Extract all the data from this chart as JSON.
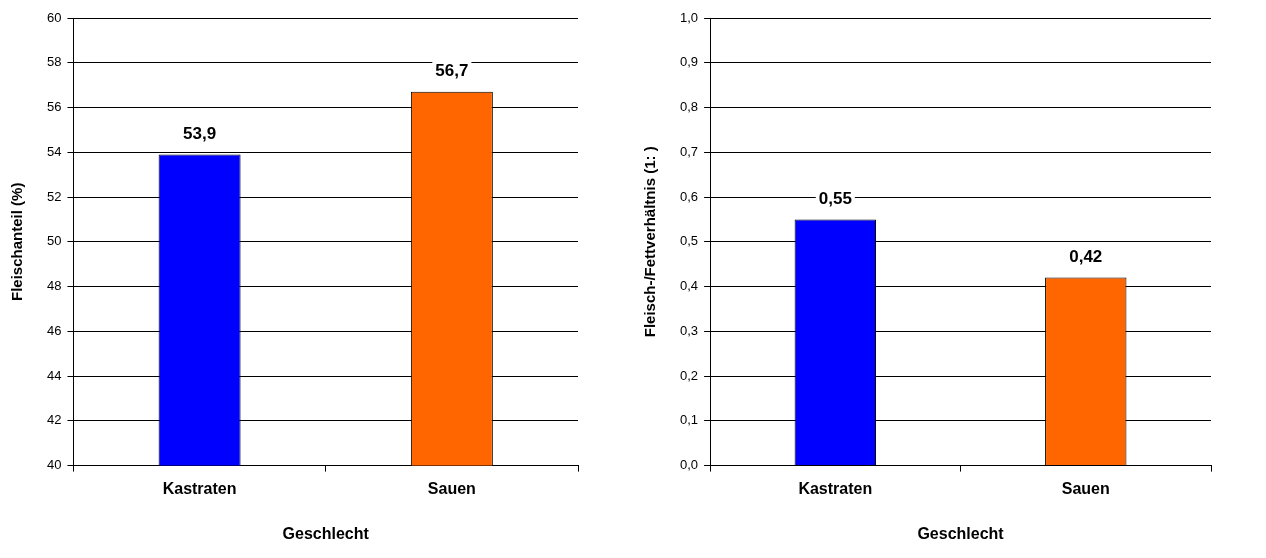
{
  "chart_data": [
    {
      "type": "bar",
      "categories": [
        "Kastraten",
        "Sauen"
      ],
      "colors": [
        "#0000ff",
        "#ff6600"
      ],
      "values": [
        53.9,
        56.7
      ],
      "value_labels": [
        "53,9",
        "56,7"
      ],
      "xlabel": "Geschlecht",
      "ylabel": "Fleischanteil (%)",
      "ylim": [
        40,
        60
      ],
      "yticks": [
        40,
        42,
        44,
        46,
        48,
        50,
        52,
        54,
        56,
        58,
        60
      ],
      "grid": "y",
      "legend": false
    },
    {
      "type": "bar",
      "categories": [
        "Kastraten",
        "Sauen"
      ],
      "colors": [
        "#0000ff",
        "#ff6600"
      ],
      "values": [
        0.55,
        0.42
      ],
      "value_labels": [
        "0,55",
        "0,42"
      ],
      "xlabel": "Geschlecht",
      "ylabel": "Fleisch-/Fettverhältnis (1: )",
      "ylim": [
        0,
        1
      ],
      "yticks": [
        {
          "value": 0,
          "label": "0,0"
        },
        {
          "value": 0.1,
          "label": "0,1"
        },
        {
          "value": 0.2,
          "label": "0,2"
        },
        {
          "value": 0.3,
          "label": "0,3"
        },
        {
          "value": 0.4,
          "label": "0,4"
        },
        {
          "value": 0.5,
          "label": "0,5"
        },
        {
          "value": 0.6,
          "label": "0,6"
        },
        {
          "value": 0.7,
          "label": "0,7"
        },
        {
          "value": 0.8,
          "label": "0,8"
        },
        {
          "value": 0.9,
          "label": "0,9"
        },
        {
          "value": 1,
          "label": "1,0"
        }
      ],
      "grid": "y",
      "legend": false
    }
  ]
}
